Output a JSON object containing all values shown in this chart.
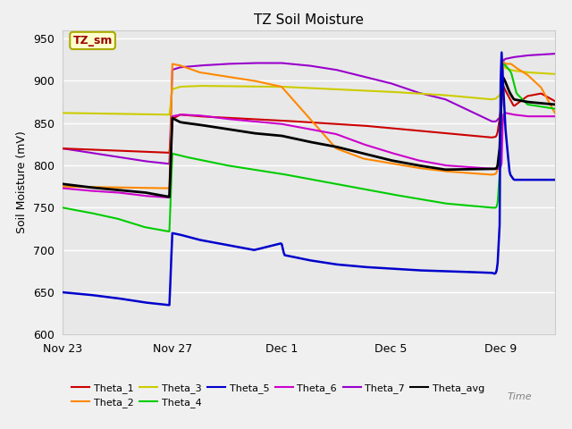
{
  "title": "TZ Soil Moisture",
  "ylabel": "Soil Moisture (mV)",
  "xlabel": "Time",
  "ylim": [
    600,
    960
  ],
  "yticks": [
    600,
    650,
    700,
    750,
    800,
    850,
    900,
    950
  ],
  "xtick_pos": [
    0,
    4,
    8,
    12,
    16
  ],
  "xtick_labels": [
    "Nov 23",
    "Nov 27",
    "Dec 1",
    "Dec 5",
    "Dec 9"
  ],
  "xlim": [
    0,
    18
  ],
  "fig_bg": "#f0f0f0",
  "plot_bg": "#e8e8e8",
  "grid_color": "#ffffff",
  "legend_box_fill": "#ffffcc",
  "legend_box_edge": "#aaaa00",
  "legend_text": "TZ_sm",
  "colors": {
    "Theta_1": "#cc0000",
    "Theta_2": "#ff8800",
    "Theta_3": "#cccc00",
    "Theta_4": "#00cc00",
    "Theta_5": "#0000cc",
    "Theta_6": "#cc00cc",
    "Theta_7": "#9900cc",
    "Theta_avg": "#000000"
  },
  "Theta_1": [
    [
      0,
      820
    ],
    [
      3.85,
      815
    ],
    [
      3.9,
      815
    ],
    [
      4.0,
      855
    ],
    [
      4.3,
      860
    ],
    [
      5,
      858
    ],
    [
      8,
      853
    ],
    [
      11,
      847
    ],
    [
      14,
      838
    ],
    [
      15.7,
      833
    ],
    [
      15.85,
      834
    ],
    [
      15.9,
      838
    ],
    [
      16.0,
      860
    ],
    [
      16.1,
      895
    ],
    [
      16.2,
      888
    ],
    [
      16.5,
      870
    ],
    [
      17,
      882
    ],
    [
      17.5,
      885
    ],
    [
      18,
      876
    ]
  ],
  "Theta_2": [
    [
      0,
      775
    ],
    [
      3.85,
      773
    ],
    [
      3.9,
      773
    ],
    [
      4.0,
      920
    ],
    [
      4.3,
      918
    ],
    [
      5,
      910
    ],
    [
      7,
      900
    ],
    [
      8,
      893
    ],
    [
      10,
      820
    ],
    [
      11,
      808
    ],
    [
      13,
      797
    ],
    [
      14,
      793
    ],
    [
      15.7,
      789
    ],
    [
      15.85,
      790
    ],
    [
      15.9,
      795
    ],
    [
      16.0,
      800
    ],
    [
      16.05,
      895
    ],
    [
      16.1,
      923
    ],
    [
      16.2,
      920
    ],
    [
      16.4,
      920
    ],
    [
      16.6,
      915
    ],
    [
      17,
      907
    ],
    [
      17.5,
      892
    ],
    [
      18,
      862
    ]
  ],
  "Theta_3": [
    [
      0,
      862
    ],
    [
      3.85,
      860
    ],
    [
      3.9,
      860
    ],
    [
      4.0,
      890
    ],
    [
      4.3,
      893
    ],
    [
      5,
      894
    ],
    [
      8,
      893
    ],
    [
      10,
      890
    ],
    [
      12,
      887
    ],
    [
      14,
      883
    ],
    [
      15.7,
      878
    ],
    [
      15.85,
      879
    ],
    [
      15.9,
      881
    ],
    [
      16.0,
      883
    ],
    [
      16.05,
      895
    ],
    [
      16.1,
      918
    ],
    [
      16.2,
      915
    ],
    [
      16.5,
      912
    ],
    [
      17,
      910
    ],
    [
      18,
      908
    ]
  ],
  "Theta_4": [
    [
      0,
      750
    ],
    [
      1,
      744
    ],
    [
      2,
      737
    ],
    [
      3,
      727
    ],
    [
      3.85,
      722
    ],
    [
      3.9,
      722
    ],
    [
      4.0,
      814
    ],
    [
      4.5,
      810
    ],
    [
      6,
      800
    ],
    [
      8,
      790
    ],
    [
      10,
      778
    ],
    [
      12,
      766
    ],
    [
      14,
      755
    ],
    [
      15.7,
      750
    ],
    [
      15.85,
      750
    ],
    [
      15.9,
      753
    ],
    [
      16.0,
      800
    ],
    [
      16.05,
      917
    ],
    [
      16.1,
      920
    ],
    [
      16.2,
      918
    ],
    [
      16.4,
      910
    ],
    [
      16.6,
      885
    ],
    [
      17,
      872
    ],
    [
      18,
      867
    ]
  ],
  "Theta_5": [
    [
      0,
      650
    ],
    [
      1,
      647
    ],
    [
      2,
      643
    ],
    [
      3,
      638
    ],
    [
      3.85,
      635
    ],
    [
      3.9,
      635
    ],
    [
      4.0,
      720
    ],
    [
      4.3,
      718
    ],
    [
      5,
      712
    ],
    [
      6,
      706
    ],
    [
      7,
      700
    ],
    [
      8,
      708
    ],
    [
      8.1,
      694
    ],
    [
      9,
      688
    ],
    [
      10,
      683
    ],
    [
      11,
      680
    ],
    [
      12,
      678
    ],
    [
      13,
      676
    ],
    [
      14,
      675
    ],
    [
      15.7,
      673
    ],
    [
      15.8,
      672
    ],
    [
      15.85,
      673
    ],
    [
      15.9,
      680
    ],
    [
      16.0,
      742
    ],
    [
      16.02,
      938
    ],
    [
      16.05,
      935
    ],
    [
      16.1,
      900
    ],
    [
      16.2,
      840
    ],
    [
      16.35,
      790
    ],
    [
      16.5,
      783
    ],
    [
      17,
      783
    ],
    [
      18,
      783
    ]
  ],
  "Theta_6": [
    [
      0,
      773
    ],
    [
      1,
      770
    ],
    [
      2,
      768
    ],
    [
      3,
      764
    ],
    [
      3.85,
      762
    ],
    [
      3.9,
      762
    ],
    [
      4.0,
      858
    ],
    [
      4.3,
      860
    ],
    [
      5,
      859
    ],
    [
      6,
      855
    ],
    [
      7,
      852
    ],
    [
      8,
      849
    ],
    [
      9,
      843
    ],
    [
      10,
      837
    ],
    [
      11,
      825
    ],
    [
      12,
      815
    ],
    [
      13,
      806
    ],
    [
      14,
      800
    ],
    [
      15.7,
      796
    ],
    [
      15.85,
      796
    ],
    [
      15.9,
      796
    ],
    [
      16.0,
      797
    ],
    [
      16.05,
      800
    ],
    [
      16.1,
      860
    ],
    [
      16.2,
      862
    ],
    [
      16.5,
      860
    ],
    [
      17,
      858
    ],
    [
      18,
      858
    ]
  ],
  "Theta_7": [
    [
      0,
      820
    ],
    [
      1,
      815
    ],
    [
      2,
      810
    ],
    [
      3,
      805
    ],
    [
      3.85,
      802
    ],
    [
      3.9,
      802
    ],
    [
      4.0,
      913
    ],
    [
      4.3,
      916
    ],
    [
      5,
      918
    ],
    [
      6,
      920
    ],
    [
      7,
      921
    ],
    [
      8,
      921
    ],
    [
      9,
      918
    ],
    [
      10,
      913
    ],
    [
      11,
      905
    ],
    [
      12,
      897
    ],
    [
      13,
      886
    ],
    [
      14,
      878
    ],
    [
      15.7,
      852
    ],
    [
      15.85,
      852
    ],
    [
      15.9,
      854
    ],
    [
      16.0,
      857
    ],
    [
      16.05,
      868
    ],
    [
      16.1,
      924
    ],
    [
      16.2,
      926
    ],
    [
      16.5,
      928
    ],
    [
      17,
      930
    ],
    [
      18,
      932
    ]
  ],
  "Theta_avg": [
    [
      0,
      778
    ],
    [
      1,
      774
    ],
    [
      2,
      771
    ],
    [
      3,
      768
    ],
    [
      3.85,
      763
    ],
    [
      3.9,
      763
    ],
    [
      4.0,
      856
    ],
    [
      4.3,
      851
    ],
    [
      5,
      848
    ],
    [
      6,
      843
    ],
    [
      7,
      838
    ],
    [
      8,
      835
    ],
    [
      9,
      828
    ],
    [
      10,
      822
    ],
    [
      11,
      814
    ],
    [
      12,
      806
    ],
    [
      13,
      800
    ],
    [
      14,
      795
    ],
    [
      15.7,
      796
    ],
    [
      15.85,
      796
    ],
    [
      15.9,
      798
    ],
    [
      16.0,
      826
    ],
    [
      16.05,
      900
    ],
    [
      16.1,
      905
    ],
    [
      16.2,
      898
    ],
    [
      16.35,
      886
    ],
    [
      16.5,
      878
    ],
    [
      17,
      875
    ],
    [
      18,
      872
    ]
  ]
}
